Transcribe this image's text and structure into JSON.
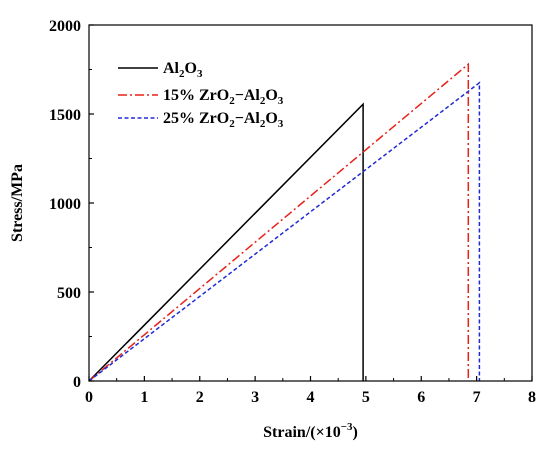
{
  "chart_data": {
    "type": "line",
    "xlabel": "Strain/(×10",
    "xlabel_sup": "−3",
    "xlabel_close": ")",
    "ylabel": "Stress/MPa",
    "xlim": [
      0,
      8
    ],
    "ylim": [
      0,
      2000
    ],
    "xticks": [
      "0",
      "1",
      "2",
      "3",
      "4",
      "5",
      "6",
      "7",
      "8"
    ],
    "yticks": [
      "0",
      "500",
      "1000",
      "1500",
      "2000"
    ],
    "grid": false,
    "legend_position": "top-left",
    "series": [
      {
        "name_parts": [
          [
            "Al",
            ""
          ],
          [
            "2",
            "sub"
          ],
          [
            "O",
            ""
          ],
          [
            "3",
            "sub"
          ]
        ],
        "color": "#000000",
        "style": "solid",
        "x": [
          0,
          4.95,
          4.95
        ],
        "y": [
          0,
          1555,
          0
        ]
      },
      {
        "name_parts": [
          [
            "15% ZrO",
            ""
          ],
          [
            "2",
            "sub"
          ],
          [
            "−Al",
            ""
          ],
          [
            "2",
            "sub"
          ],
          [
            "O",
            ""
          ],
          [
            "3",
            "sub"
          ]
        ],
        "color": "#e8211a",
        "style": "dashdot",
        "x": [
          0,
          6.85,
          6.85
        ],
        "y": [
          0,
          1780,
          0
        ]
      },
      {
        "name_parts": [
          [
            "25% ZrO",
            ""
          ],
          [
            "2",
            "sub"
          ],
          [
            "−Al",
            ""
          ],
          [
            "2",
            "sub"
          ],
          [
            "O",
            ""
          ],
          [
            "3",
            "sub"
          ]
        ],
        "color": "#1f2bd6",
        "style": "dash",
        "x": [
          0,
          7.05,
          7.05
        ],
        "y": [
          0,
          1675,
          0
        ]
      }
    ]
  }
}
